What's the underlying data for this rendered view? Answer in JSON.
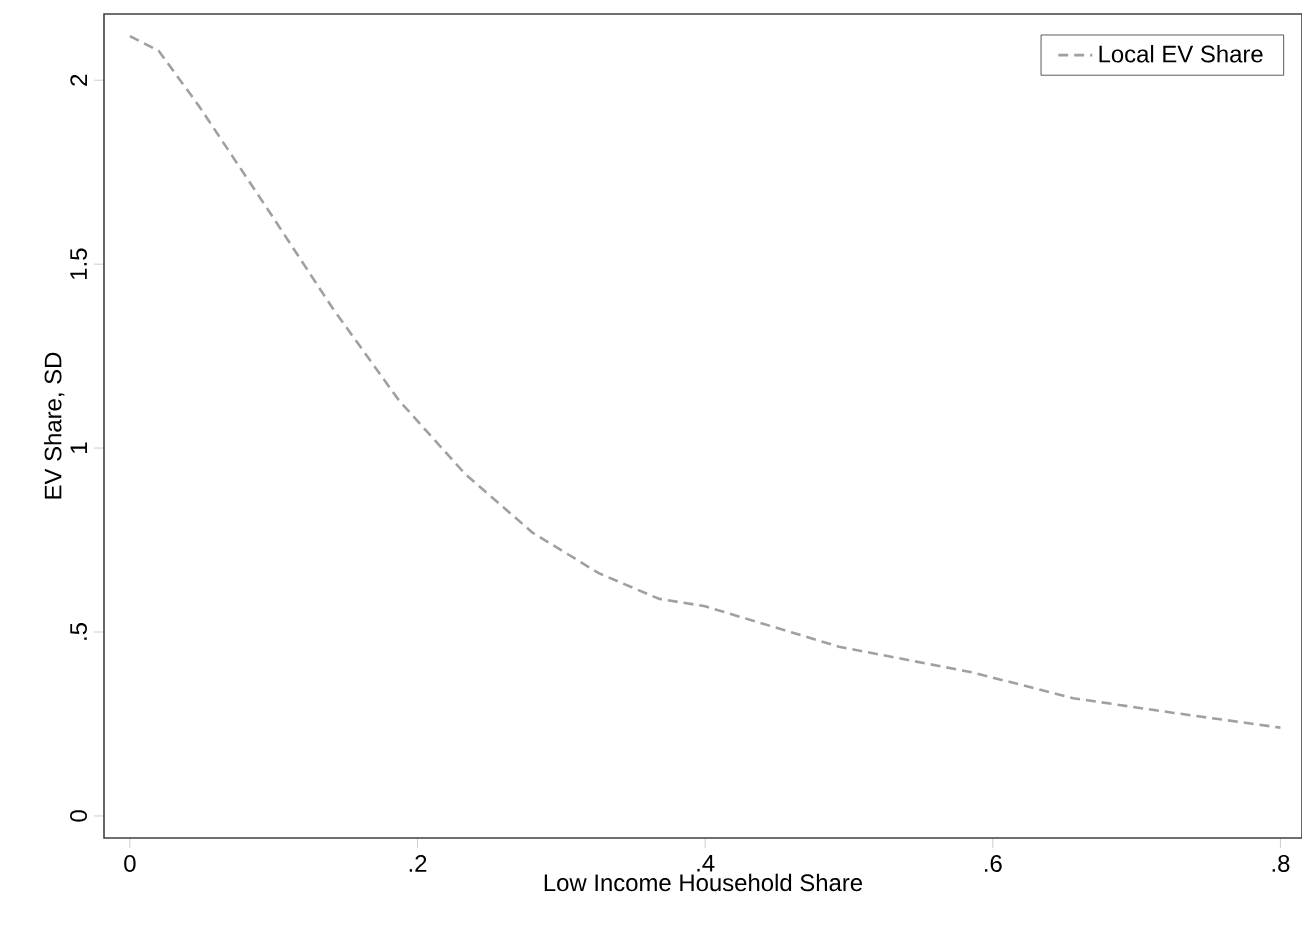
{
  "chart_data": {
    "type": "line",
    "xlabel": "Low Income Household Share",
    "ylabel": "EV Share, SD",
    "xlim": [
      -0.018,
      0.815
    ],
    "ylim": [
      -0.06,
      2.18
    ],
    "xticks": [
      {
        "value": 0,
        "label": "0"
      },
      {
        "value": 0.2,
        "label": ".2"
      },
      {
        "value": 0.4,
        "label": ".4"
      },
      {
        "value": 0.6,
        "label": ".6"
      },
      {
        "value": 0.8,
        "label": ".8"
      }
    ],
    "yticks": [
      {
        "value": 0,
        "label": "0"
      },
      {
        "value": 0.5,
        "label": ".5"
      },
      {
        "value": 1,
        "label": "1"
      },
      {
        "value": 1.5,
        "label": "1.5"
      },
      {
        "value": 2,
        "label": "2"
      }
    ],
    "grid": false,
    "legend": "top right",
    "line_style": "dashed",
    "marker": "none",
    "series": [
      {
        "name": "Local EV Share",
        "color": "#a0a0a0",
        "x": [
          0,
          0.02,
          0.048,
          0.094,
          0.141,
          0.187,
          0.233,
          0.28,
          0.326,
          0.368,
          0.4,
          0.493,
          0.586,
          0.656,
          0.726,
          0.8
        ],
        "values": [
          2.12,
          2.08,
          1.93,
          1.66,
          1.38,
          1.13,
          0.93,
          0.77,
          0.66,
          0.59,
          0.57,
          0.46,
          0.39,
          0.32,
          0.28,
          0.24
        ]
      }
    ]
  }
}
